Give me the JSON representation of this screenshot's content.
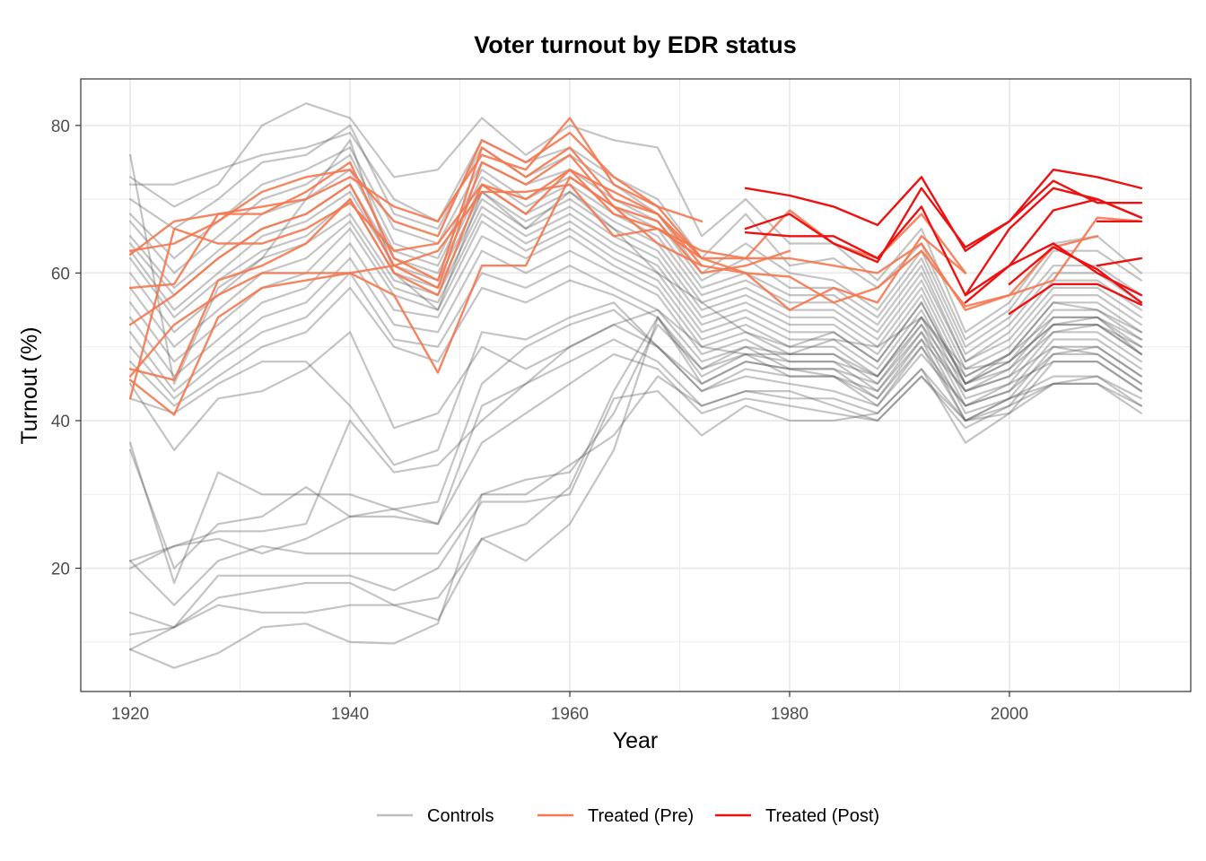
{
  "chart_data": {
    "type": "line",
    "title": "Voter turnout by EDR status",
    "xlabel": "Year",
    "ylabel": "Turnout (%)",
    "xlim": [
      1915.5,
      2016.5
    ],
    "ylim": [
      3.3,
      86.3
    ],
    "x_ticks": [
      1920,
      1940,
      1960,
      1980,
      2000
    ],
    "y_ticks": [
      20,
      40,
      60,
      80
    ],
    "x_tick_labels": [
      "1920",
      "1940",
      "1960",
      "1980",
      "2000"
    ],
    "y_tick_labels": [
      "20",
      "40",
      "60",
      "80"
    ],
    "grid": true,
    "legend_position": "bottom",
    "years": [
      1920,
      1924,
      1928,
      1932,
      1936,
      1940,
      1944,
      1948,
      1952,
      1956,
      1960,
      1964,
      1968,
      1972,
      1976,
      1980,
      1984,
      1988,
      1992,
      1996,
      2000,
      2004,
      2008,
      2012
    ],
    "legend": [
      {
        "name": "Controls",
        "color": "#bdbdbd"
      },
      {
        "name": "Treated (Pre)",
        "color": "#f4774f"
      },
      {
        "name": "Treated (Post)",
        "color": "#ee1111"
      }
    ],
    "series": [
      {
        "name": "Controls",
        "group": "controls",
        "values": [
          76,
          45,
          58,
          62,
          70,
          78,
          60,
          55,
          71,
          66,
          71,
          66,
          60,
          56,
          52,
          50,
          52,
          48,
          56,
          45,
          49,
          56,
          55,
          52
        ]
      },
      {
        "name": "Controls",
        "group": "controls",
        "values": [
          73,
          69,
          72,
          80,
          83,
          81,
          73,
          74,
          81,
          76,
          80,
          78,
          77,
          65,
          70,
          64,
          64,
          59,
          66,
          52,
          56,
          64,
          65,
          60
        ]
      },
      {
        "name": "Controls",
        "group": "controls",
        "values": [
          72,
          72,
          74,
          76,
          77,
          79,
          70,
          67,
          78,
          75,
          77,
          73,
          70,
          62,
          68,
          61,
          62,
          58,
          64,
          51,
          55,
          63,
          63,
          59
        ]
      },
      {
        "name": "Controls",
        "group": "controls",
        "values": [
          70,
          66,
          70,
          75,
          76,
          80,
          68,
          66,
          77,
          73,
          76,
          72,
          68,
          60,
          64,
          60,
          59,
          55,
          63,
          50,
          54,
          61,
          61,
          57
        ]
      },
      {
        "name": "Controls",
        "group": "controls",
        "values": [
          68,
          62,
          67,
          72,
          74,
          77,
          66,
          64,
          75,
          72,
          74,
          70,
          67,
          59,
          62,
          58,
          58,
          54,
          62,
          49,
          53,
          60,
          60,
          56
        ]
      },
      {
        "name": "Controls",
        "group": "controls",
        "values": [
          67,
          60,
          65,
          70,
          72,
          76,
          64,
          62,
          74,
          70,
          73,
          69,
          66,
          58,
          60,
          57,
          57,
          53,
          61,
          48,
          52,
          59,
          59,
          55
        ]
      },
      {
        "name": "Controls",
        "group": "controls",
        "values": [
          65,
          58,
          63,
          68,
          70,
          74,
          63,
          61,
          73,
          69,
          72,
          68,
          65,
          57,
          59,
          56,
          56,
          52,
          60,
          48,
          51,
          58,
          58,
          54
        ]
      },
      {
        "name": "Controls",
        "group": "controls",
        "values": [
          64,
          57,
          62,
          66,
          68,
          72,
          62,
          60,
          72,
          68,
          71,
          67,
          64,
          56,
          58,
          55,
          55,
          51,
          59,
          47,
          50,
          57,
          57,
          53
        ]
      },
      {
        "name": "Controls",
        "group": "controls",
        "values": [
          63,
          55,
          60,
          65,
          67,
          71,
          61,
          59,
          71,
          67,
          70,
          66,
          63,
          55,
          57,
          54,
          54,
          50,
          58,
          46,
          49,
          56,
          56,
          52
        ]
      },
      {
        "name": "Controls",
        "group": "controls",
        "values": [
          62,
          54,
          59,
          63,
          65,
          70,
          60,
          58,
          70,
          66,
          69,
          65,
          62,
          54,
          56,
          53,
          53,
          49,
          57,
          45,
          48,
          55,
          55,
          51
        ]
      },
      {
        "name": "Controls",
        "group": "controls",
        "values": [
          60,
          52,
          57,
          62,
          64,
          68,
          59,
          57,
          69,
          65,
          68,
          64,
          61,
          53,
          55,
          52,
          52,
          48,
          56,
          45,
          47,
          54,
          54,
          50
        ]
      },
      {
        "name": "Controls",
        "group": "controls",
        "values": [
          58,
          50,
          55,
          60,
          62,
          67,
          58,
          56,
          68,
          64,
          67,
          63,
          60,
          52,
          54,
          51,
          51,
          47,
          55,
          44,
          46,
          53,
          53,
          49
        ]
      },
      {
        "name": "Controls",
        "group": "controls",
        "values": [
          56,
          48,
          53,
          58,
          60,
          66,
          57,
          55,
          67,
          63,
          66,
          62,
          59,
          51,
          53,
          50,
          50,
          46,
          54,
          43,
          45,
          52,
          52,
          48
        ]
      },
      {
        "name": "Controls",
        "group": "controls",
        "values": [
          54,
          46,
          51,
          56,
          58,
          64,
          55,
          54,
          65,
          62,
          65,
          61,
          58,
          50,
          52,
          49,
          49,
          45,
          53,
          42,
          44,
          51,
          51,
          47
        ]
      },
      {
        "name": "Controls",
        "group": "controls",
        "values": [
          52,
          44,
          49,
          54,
          56,
          62,
          53,
          52,
          63,
          60,
          63,
          60,
          57,
          49,
          51,
          48,
          48,
          44,
          52,
          41,
          43,
          50,
          50,
          46
        ]
      },
      {
        "name": "Controls",
        "group": "controls",
        "values": [
          50,
          43,
          48,
          52,
          54,
          60,
          51,
          50,
          60,
          58,
          61,
          58,
          55,
          48,
          50,
          47,
          47,
          43,
          51,
          40,
          42,
          49,
          49,
          45
        ]
      },
      {
        "name": "Controls",
        "group": "controls",
        "values": [
          48,
          42,
          46,
          50,
          52,
          58,
          50,
          48,
          58,
          56,
          59,
          57,
          54,
          47,
          49,
          46,
          46,
          42,
          50,
          40,
          41,
          48,
          48,
          44
        ]
      },
      {
        "name": "Controls",
        "group": "controls",
        "values": [
          45,
          36,
          43,
          44,
          47,
          52,
          39,
          41,
          50,
          47,
          50,
          53,
          55,
          50,
          49,
          49,
          51,
          50,
          54,
          47,
          48,
          53,
          54,
          49
        ]
      },
      {
        "name": "Controls",
        "group": "controls",
        "values": [
          43,
          41,
          45,
          48,
          48,
          42,
          34,
          36,
          52,
          51,
          54,
          56,
          50,
          45,
          48,
          47,
          46,
          43,
          50,
          42,
          44,
          49,
          50,
          46
        ]
      },
      {
        "name": "Controls",
        "group": "controls",
        "values": [
          37,
          18,
          33,
          30,
          30,
          30,
          28,
          29,
          45,
          50,
          53,
          55,
          50,
          44,
          47,
          46,
          46,
          44,
          51,
          44,
          46,
          50,
          49,
          45
        ]
      },
      {
        "name": "Controls",
        "group": "controls",
        "values": [
          36,
          20,
          26,
          27,
          31,
          27,
          28,
          26,
          42,
          45,
          50,
          53,
          50,
          44,
          46,
          45,
          44,
          42,
          49,
          42,
          45,
          48,
          48,
          44
        ]
      },
      {
        "name": "Controls",
        "group": "controls",
        "values": [
          21,
          23,
          25,
          25,
          26,
          40,
          33,
          34,
          40,
          45,
          48,
          51,
          48,
          42,
          44,
          43,
          43,
          41,
          47,
          40,
          43,
          46,
          46,
          43
        ]
      },
      {
        "name": "Controls",
        "group": "controls",
        "values": [
          20,
          23,
          24,
          22,
          24,
          27,
          27,
          26,
          37,
          41,
          45,
          49,
          47,
          41,
          43,
          42,
          41,
          40,
          46,
          39,
          42,
          45,
          45,
          42
        ]
      },
      {
        "name": "Controls",
        "group": "controls",
        "values": [
          21,
          15,
          21,
          23,
          22,
          22,
          22,
          22,
          30,
          30,
          34,
          38,
          46,
          42,
          44,
          44,
          42,
          40,
          46,
          40,
          43,
          45,
          45,
          41
        ]
      },
      {
        "name": "Controls",
        "group": "controls",
        "values": [
          14,
          12,
          19,
          19,
          19,
          19,
          17,
          20,
          29,
          29,
          30,
          43,
          44,
          38,
          42,
          40,
          40,
          41,
          47,
          37,
          41,
          45,
          46,
          42
        ]
      },
      {
        "name": "Controls",
        "group": "controls",
        "values": [
          11,
          12,
          16,
          17,
          18,
          18,
          15,
          16,
          24,
          21,
          26,
          36,
          54,
          45,
          48,
          47,
          47,
          45,
          52,
          44,
          47,
          52,
          53,
          49
        ]
      },
      {
        "name": "Controls",
        "group": "controls",
        "values": [
          9,
          12,
          15,
          14,
          14,
          15,
          15,
          13,
          24,
          26,
          31,
          44,
          54,
          46,
          49,
          48,
          48,
          46,
          53,
          45,
          48,
          53,
          53,
          50
        ]
      },
      {
        "name": "Controls",
        "group": "controls",
        "values": [
          9,
          6.5,
          8.5,
          12,
          12.5,
          10,
          9.8,
          12.5,
          30,
          32,
          33,
          41,
          53,
          47,
          50,
          49,
          49,
          46,
          54,
          46,
          49,
          54,
          54,
          51
        ]
      },
      {
        "name": "Treated (Pre)",
        "group": "pre",
        "values": [
          62.5,
          67,
          68,
          69,
          70,
          73,
          69,
          67,
          76,
          74,
          81,
          72,
          69,
          67
        ]
      },
      {
        "name": "Treated (Pre)",
        "group": "pre",
        "values": [
          63,
          64,
          67,
          71,
          73,
          74,
          67,
          65,
          78,
          75,
          79,
          73,
          69,
          62
        ]
      },
      {
        "name": "Treated (Pre)",
        "group": "pre",
        "values": [
          58,
          58.5,
          68,
          68,
          71,
          75,
          62,
          59,
          77,
          73,
          77,
          70,
          68,
          61
        ]
      },
      {
        "name": "Treated (Pre)",
        "group": "pre",
        "values": [
          53,
          57,
          62,
          66,
          68,
          72,
          61,
          58,
          75,
          72,
          76,
          69,
          67,
          60,
          61,
          63
        ]
      },
      {
        "name": "Treated (Pre)",
        "group": "pre",
        "values": [
          47,
          45.5,
          59,
          61,
          64,
          70,
          60,
          57,
          72,
          70,
          74,
          68,
          66,
          63,
          62,
          62,
          61,
          60,
          64,
          55,
          57,
          59,
          67.5,
          67
        ]
      },
      {
        "name": "Treated (Pre)",
        "group": "pre",
        "values": [
          46,
          53,
          57,
          60,
          60,
          60,
          57,
          46.5,
          61,
          61,
          73,
          69,
          64,
          61,
          60,
          59.5,
          56,
          58,
          63,
          55.5,
          57,
          63.5,
          65
        ]
      },
      {
        "name": "Treated (Pre)",
        "group": "pre",
        "values": [
          45.5,
          40.8,
          54,
          58,
          59,
          60,
          61,
          63,
          71,
          71,
          72,
          65,
          66,
          62,
          62,
          68.5,
          64,
          62,
          68,
          60
        ]
      },
      {
        "name": "Treated (Pre)",
        "group": "pre",
        "values": [
          43,
          66,
          64,
          64,
          66,
          69.5,
          63,
          64,
          72,
          68,
          74,
          71,
          68,
          62,
          60,
          55,
          58,
          56,
          65,
          60
        ]
      },
      {
        "name": "Treated (Post)",
        "group": "post",
        "start_year": 1976,
        "values": [
          71.5,
          70.5,
          69,
          66.5,
          73,
          63,
          67,
          74,
          73,
          71.5
        ]
      },
      {
        "name": "Treated (Post)",
        "group": "post",
        "start_year": 1976,
        "values": [
          66,
          68,
          64,
          61.5,
          71.5,
          63.5,
          67,
          72.5,
          69.5,
          69.5
        ]
      },
      {
        "name": "Treated (Post)",
        "group": "post",
        "start_year": 1976,
        "values": [
          65.5,
          65,
          65,
          62,
          69,
          57,
          66,
          71.5,
          70,
          67.5
        ]
      },
      {
        "name": "Treated (Post)",
        "group": "post",
        "start_year": 1996,
        "values": [
          57,
          61,
          68.5,
          70,
          67.5
        ]
      },
      {
        "name": "Treated (Post)",
        "group": "post",
        "start_year": 1996,
        "values": [
          56,
          61,
          64,
          60,
          57
        ]
      },
      {
        "name": "Treated (Post)",
        "group": "post",
        "start_year": 2000,
        "values": [
          58.5,
          63.5,
          60.5,
          56
        ]
      },
      {
        "name": "Treated (Post)",
        "group": "post",
        "start_year": 2000,
        "values": [
          54.5,
          58.5,
          58.5,
          55.7
        ]
      },
      {
        "name": "Treated (Post)",
        "group": "post",
        "start_year": 2008,
        "values": [
          67,
          67
        ]
      },
      {
        "name": "Treated (Post)",
        "group": "post",
        "start_year": 2008,
        "values": [
          61,
          62
        ]
      }
    ]
  }
}
